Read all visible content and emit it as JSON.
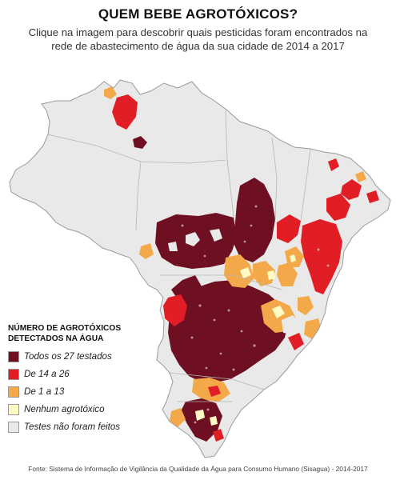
{
  "header": {
    "title": "QUEM BEBE AGROTÓXICOS?",
    "subtitle_line1": "Clique na imagem para descobrir quais pesticidas foram encontrados na",
    "subtitle_line2": "rede de abastecimento de água da sua cidade de 2014 a 2017"
  },
  "legend": {
    "title_line1": "NÚMERO DE AGROTÓXICOS",
    "title_line2": "DETECTADOS NA ÁGUA",
    "items": [
      {
        "label": "Todos os 27 testados",
        "color": "#6e0f22"
      },
      {
        "label": "De 14 a 26",
        "color": "#e11d25"
      },
      {
        "label": "De 1 a 13",
        "color": "#f3a94a"
      },
      {
        "label": "Nenhum agrotóxico",
        "color": "#fffbc4"
      },
      {
        "label": "Testes não foram feitos",
        "color": "#e9e9e9"
      }
    ]
  },
  "colors": {
    "all_27": "#6e0f22",
    "range_14_26": "#e11d25",
    "range_1_13": "#f3a94a",
    "none": "#fffbc4",
    "not_tested": "#e9e9e9",
    "borders": "#ffffff",
    "state_lines": "#b5b5b5"
  },
  "footer": {
    "source": "Fonte: Sistema de Informação de Vigilância da Qualidade da Água para Consumo Humano (Sisagua) - 2014-2017"
  }
}
